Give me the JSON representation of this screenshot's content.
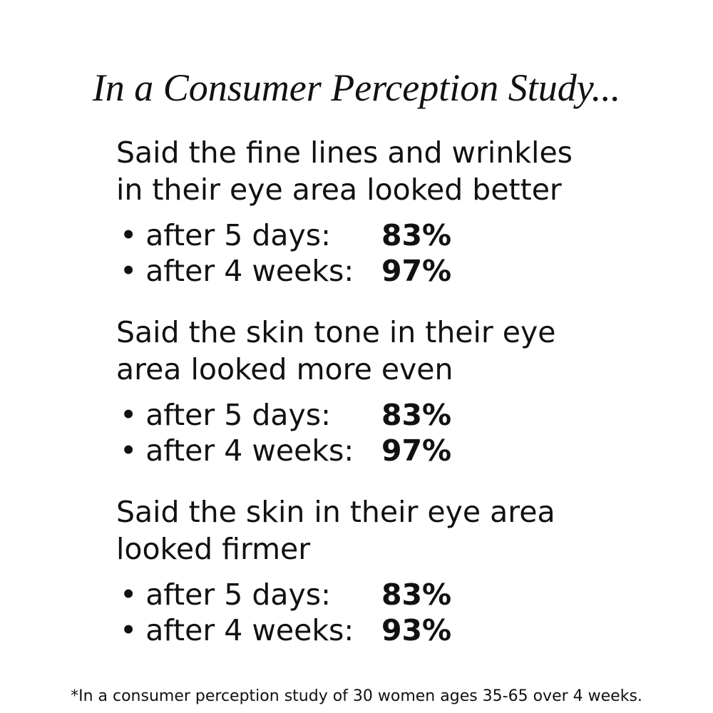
{
  "title": "In a Consumer Perception Study...",
  "sections": [
    {
      "heading": [
        "Said the fine lines and wrinkles",
        "in their eye area looked better"
      ],
      "items": [
        {
          "label": "after 5 days:",
          "value": "83%"
        },
        {
          "label": "after 4 weeks:",
          "value": "97%"
        }
      ]
    },
    {
      "heading": [
        "Said the skin tone in their eye",
        "area looked more even"
      ],
      "items": [
        {
          "label": "after 5 days:",
          "value": "83%"
        },
        {
          "label": "after 4 weeks:",
          "value": "97%"
        }
      ]
    },
    {
      "heading": [
        "Said the skin in their eye area",
        "looked firmer"
      ],
      "items": [
        {
          "label": "after 5 days:",
          "value": "83%"
        },
        {
          "label": "after 4 weeks:",
          "value": "93%"
        }
      ]
    }
  ],
  "footnote": "*In a consumer perception study of 30 women ages 35-65 over 4 weeks."
}
